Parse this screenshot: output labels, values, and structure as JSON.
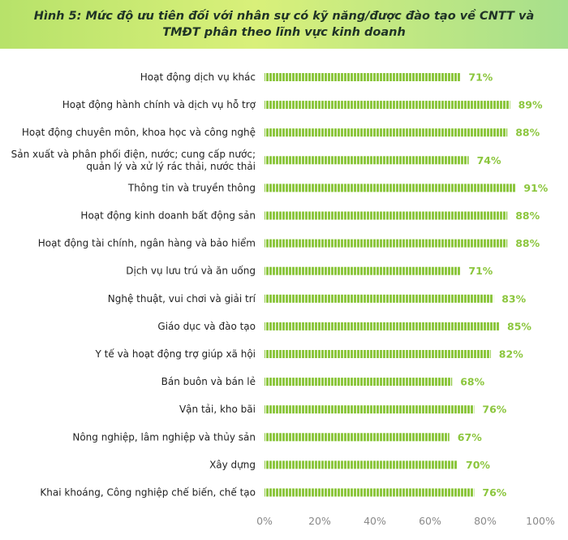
{
  "title": {
    "line1": "Hình 5: Mức độ ưu tiên đối với nhân sự có kỹ năng/được đào tạo về CNTT và",
    "line2": "TMĐT phân theo lĩnh vực kinh doanh"
  },
  "colors": {
    "bar": "#8cc63e",
    "bar_stripe": "#ffffff",
    "value_label": "#8cc63e",
    "title_band_start": "#b7e26a",
    "title_band_end": "#a6df8c"
  },
  "chart_data": {
    "type": "bar",
    "orientation": "horizontal",
    "categories": [
      [
        "Hoạt động dịch vụ khác"
      ],
      [
        "Hoạt động hành chính và dịch vụ hỗ trợ"
      ],
      [
        "Hoạt động chuyên môn, khoa học và công nghệ"
      ],
      [
        "Sản xuất và phân phối điện, nước; cung cấp nước;",
        "quản lý và xử lý rác thải, nước thải"
      ],
      [
        "Thông tin và truyền thông"
      ],
      [
        "Hoạt động kinh doanh bất động sản"
      ],
      [
        "Hoạt động tài chính, ngân hàng và bảo hiểm"
      ],
      [
        "Dịch vụ lưu trú và ăn uống"
      ],
      [
        "Nghệ thuật, vui chơi và giải trí"
      ],
      [
        "Giáo dục và đào tạo"
      ],
      [
        "Y tế và hoạt động trợ giúp xã hội"
      ],
      [
        "Bán buôn và bán lẻ"
      ],
      [
        "Vận tải, kho bãi"
      ],
      [
        "Nông nghiệp, lâm nghiệp và thủy sản"
      ],
      [
        "Xây dựng"
      ],
      [
        "Khai khoáng, Công nghiệp chế biến, chế tạo"
      ]
    ],
    "values": [
      71,
      89,
      88,
      74,
      91,
      88,
      88,
      71,
      83,
      85,
      82,
      68,
      76,
      67,
      70,
      76
    ],
    "value_labels": [
      "71%",
      "89%",
      "88%",
      "74%",
      "91%",
      "88%",
      "88%",
      "71%",
      "83%",
      "85%",
      "82%",
      "68%",
      "76%",
      "67%",
      "70%",
      "76%"
    ],
    "xlim": [
      0,
      100
    ],
    "xticks": [
      0,
      20,
      40,
      60,
      80,
      100
    ],
    "xtick_labels": [
      "0%",
      "20%",
      "40%",
      "60%",
      "80%",
      "100%"
    ],
    "grid": false,
    "legend": "none"
  }
}
